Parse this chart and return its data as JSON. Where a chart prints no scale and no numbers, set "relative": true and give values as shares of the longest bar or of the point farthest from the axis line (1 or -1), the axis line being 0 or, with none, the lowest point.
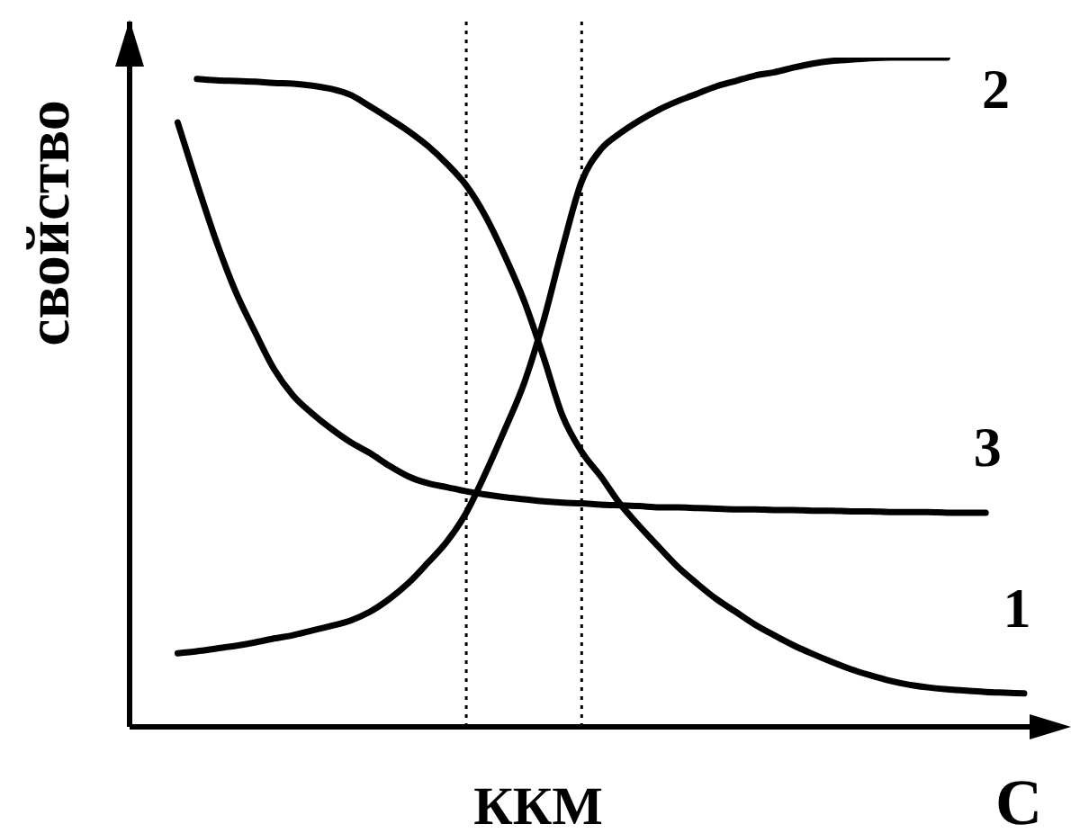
{
  "chart_data": {
    "type": "line",
    "relative": true,
    "xlabel": "C",
    "ylabel": "свойство",
    "marker": "none",
    "line_style": "solid",
    "categories": [
      null,
      null,
      null,
      null,
      null,
      null,
      null,
      null,
      null,
      null,
      null,
      null,
      null,
      null,
      null,
      null,
      null,
      null,
      null,
      null,
      null,
      null,
      null,
      null,
      null,
      null,
      null,
      null,
      null,
      null,
      null,
      null,
      null,
      null,
      null,
      null,
      null,
      null,
      null,
      null,
      null,
      null,
      null,
      null,
      null,
      null,
      null,
      null
    ],
    "series": [
      {
        "name": "1",
        "color": "#000000",
        "values": [
          null,
          null,
          null,
          0.968,
          0.966,
          0.965,
          0.964,
          0.962,
          0.961,
          0.958,
          0.953,
          0.944,
          0.927,
          0.909,
          0.89,
          0.868,
          0.841,
          0.809,
          0.763,
          0.704,
          0.637,
          0.554,
          0.465,
          0.411,
          0.374,
          0.333,
          0.3,
          0.269,
          0.239,
          0.214,
          0.191,
          0.172,
          0.153,
          0.137,
          0.122,
          0.109,
          0.097,
          0.086,
          0.077,
          0.069,
          0.063,
          0.059,
          0.056,
          0.054,
          0.052,
          0.051,
          0.05,
          null
        ]
      },
      {
        "name": "2",
        "color": "#000000",
        "values": [
          null,
          null,
          0.11,
          0.113,
          0.117,
          0.121,
          0.126,
          0.132,
          0.137,
          0.144,
          0.151,
          0.159,
          0.172,
          0.191,
          0.215,
          0.245,
          0.277,
          0.32,
          0.379,
          0.444,
          0.513,
          0.605,
          0.715,
          0.815,
          0.863,
          0.887,
          0.906,
          0.922,
          0.935,
          0.946,
          0.957,
          0.965,
          0.973,
          0.978,
          0.985,
          0.991,
          0.995,
          0.997,
          0.999,
          1.0,
          1.0,
          1.0,
          1.0,
          null,
          null,
          null,
          null,
          null
        ]
      },
      {
        "name": "3",
        "color": "#000000",
        "values": [
          null,
          null,
          0.903,
          0.812,
          0.726,
          0.651,
          0.591,
          0.535,
          0.495,
          0.468,
          0.445,
          0.425,
          0.409,
          0.39,
          0.374,
          0.364,
          0.358,
          0.352,
          0.347,
          0.343,
          0.34,
          0.337,
          0.335,
          0.334,
          0.332,
          0.331,
          0.33,
          0.328,
          0.328,
          0.327,
          0.326,
          0.325,
          0.325,
          0.324,
          0.324,
          0.323,
          0.323,
          0.322,
          0.322,
          0.321,
          0.321,
          0.321,
          0.32,
          0.32,
          0.32,
          null,
          null,
          null
        ]
      }
    ],
    "annotations": [
      "ККМ"
    ]
  }
}
